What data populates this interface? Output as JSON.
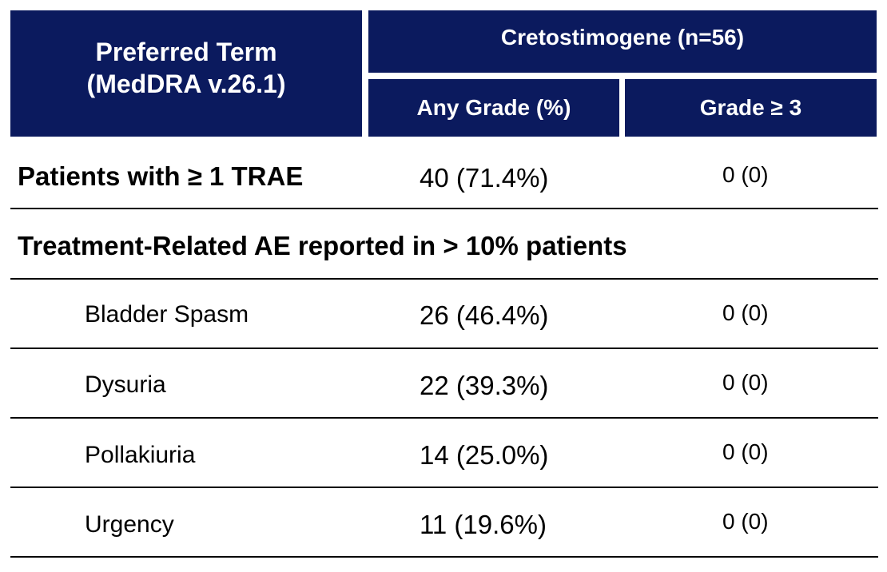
{
  "table": {
    "header": {
      "preferred_term_line1": "Preferred Term",
      "preferred_term_line2": "(MedDRA v.26.1)",
      "group": "Cretostimogene (n=56)",
      "any_grade": "Any Grade (%)",
      "grade3": "Grade ≥ 3"
    },
    "summary_row": {
      "label": "Patients with ≥ 1 TRAE",
      "any_grade": "40 (71.4%)",
      "grade3": "0 (0)"
    },
    "section_label": "Treatment-Related AE reported in > 10% patients",
    "rows": [
      {
        "label": "Bladder Spasm",
        "any_grade": "26 (46.4%)",
        "grade3": "0 (0)"
      },
      {
        "label": "Dysuria",
        "any_grade": "22 (39.3%)",
        "grade3": "0 (0)"
      },
      {
        "label": "Pollakiuria",
        "any_grade": "14 (25.0%)",
        "grade3": "0 (0)"
      },
      {
        "label": "Urgency",
        "any_grade": "11 (19.6%)",
        "grade3": "0 (0)"
      }
    ]
  },
  "colors": {
    "header_bg": "#0b1a5e",
    "header_text": "#ffffff",
    "rule": "#000000"
  }
}
